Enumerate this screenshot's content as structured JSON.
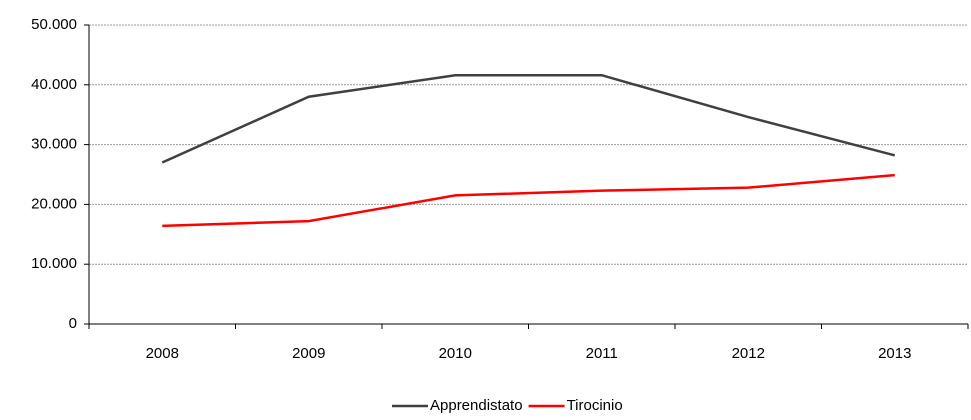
{
  "chart_data": {
    "type": "line",
    "categories": [
      "2008",
      "2009",
      "2010",
      "2011",
      "2012",
      "2013"
    ],
    "series": [
      {
        "name": "Apprendistato",
        "color": "#404040",
        "values": [
          27000,
          38000,
          41600,
          41600,
          34600,
          28200
        ]
      },
      {
        "name": "Tirocinio",
        "color": "#ff0000",
        "values": [
          16400,
          17200,
          21500,
          22300,
          22800,
          24900
        ]
      }
    ],
    "ylim": [
      0,
      50000
    ],
    "yticks": [
      0,
      {
        "value": 10000,
        "label": "10.000"
      },
      {
        "value": 20000,
        "label": "20.000"
      },
      {
        "value": 30000,
        "label": "30.000"
      },
      {
        "value": 40000,
        "label": "40.000"
      },
      {
        "value": 50000,
        "label": "50.000"
      }
    ],
    "grid": true,
    "legend": "bottom"
  }
}
